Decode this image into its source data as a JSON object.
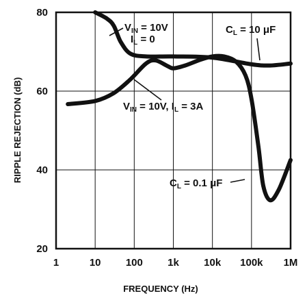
{
  "chart_data": {
    "type": "line",
    "xlabel": "FREQUENCY (Hz)",
    "ylabel": "RIPPLE REJECTION (dB)",
    "xscale": "log",
    "xlim": [
      1,
      1000000
    ],
    "ylim": [
      20,
      80
    ],
    "grid": true,
    "x_ticks": [
      {
        "v": 1,
        "label": "1"
      },
      {
        "v": 10,
        "label": "10"
      },
      {
        "v": 100,
        "label": "100"
      },
      {
        "v": 1000,
        "label": "1k"
      },
      {
        "v": 10000,
        "label": "10k"
      },
      {
        "v": 100000,
        "label": "100k"
      },
      {
        "v": 1000000,
        "label": "1M"
      }
    ],
    "y_ticks": [
      {
        "v": 20,
        "label": "20"
      },
      {
        "v": 40,
        "label": "40"
      },
      {
        "v": 60,
        "label": "60"
      },
      {
        "v": 80,
        "label": "80"
      }
    ],
    "series": [
      {
        "id": "vin10_il0_cl10uF",
        "points": [
          [
            10,
            80
          ],
          [
            20,
            78.4
          ],
          [
            30,
            76.6
          ],
          [
            45,
            72.5
          ],
          [
            80,
            69.5
          ],
          [
            200,
            68.8
          ],
          [
            1000,
            68.8
          ],
          [
            10000,
            68.5
          ],
          [
            100000,
            66.8
          ],
          [
            300000,
            66.5
          ],
          [
            1000000,
            67
          ]
        ]
      },
      {
        "id": "vin10_il3A",
        "points": [
          [
            2,
            56.7
          ],
          [
            10,
            57.5
          ],
          [
            30,
            59.5
          ],
          [
            80,
            63
          ],
          [
            200,
            67
          ],
          [
            350,
            67.8
          ],
          [
            700,
            66.4
          ],
          [
            1000,
            65.8
          ],
          [
            2000,
            66.5
          ],
          [
            5000,
            68
          ],
          [
            10000,
            68.8
          ],
          [
            20000,
            68.8
          ],
          [
            40000,
            67.5
          ],
          [
            70000,
            64
          ],
          [
            100000,
            58
          ],
          [
            150000,
            46
          ],
          [
            200000,
            36
          ],
          [
            300000,
            32.3
          ],
          [
            500000,
            35
          ],
          [
            1000000,
            42.5
          ]
        ]
      }
    ],
    "annotations": [
      {
        "text": "V",
        "sub": "IN",
        "rest": " = 10V"
      },
      {
        "text": "I",
        "sub": "L",
        "rest": " = 0"
      },
      {
        "text": "C",
        "sub": "L",
        "rest": " = 10 μF"
      },
      {
        "text": "V",
        "sub": "IN",
        "rest": " = 10V, I",
        "sub2": "L",
        "rest2": " = 3A"
      },
      {
        "text": "C",
        "sub": "L",
        "rest": " = 0.1 μF"
      }
    ]
  }
}
